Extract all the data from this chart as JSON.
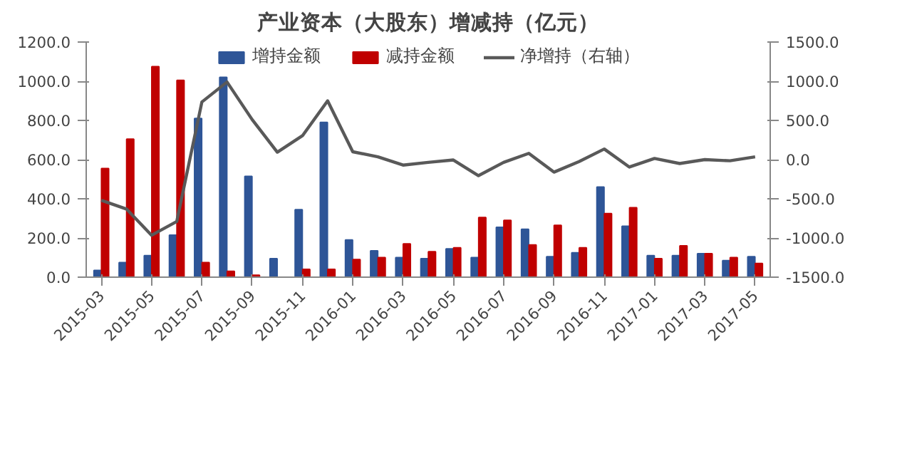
{
  "chart_data": {
    "type": "bar",
    "title": "产业资本（大股东）增减持（亿元）",
    "categories": [
      "2015-03",
      null,
      "2015-05",
      null,
      "2015-07",
      null,
      "2015-09",
      null,
      "2015-11",
      null,
      "2016-01",
      null,
      "2016-03",
      null,
      "2016-05",
      null,
      "2016-07",
      null,
      "2016-09",
      null,
      "2016-11",
      null,
      "2017-01",
      null,
      "2017-03",
      null,
      "2017-05"
    ],
    "series": [
      {
        "name": "增持金额",
        "color": "#2e5597",
        "values": [
          35,
          75,
          110,
          215,
          810,
          1020,
          515,
          95,
          345,
          790,
          190,
          135,
          100,
          95,
          145,
          100,
          255,
          245,
          105,
          125,
          460,
          260,
          110,
          110,
          120,
          85,
          105
        ]
      },
      {
        "name": "减持金额",
        "color": "#c00000",
        "values": [
          555,
          705,
          1075,
          1005,
          75,
          30,
          10,
          0,
          40,
          40,
          90,
          100,
          170,
          130,
          150,
          305,
          290,
          165,
          265,
          150,
          325,
          355,
          95,
          160,
          120,
          100,
          70
        ]
      },
      {
        "name": "净增持（右轴）",
        "type": "line",
        "axis": "y2",
        "color": "#595959",
        "values": [
          -520,
          -630,
          -965,
          -790,
          735,
          990,
          510,
          95,
          305,
          750,
          100,
          35,
          -70,
          -35,
          -5,
          -205,
          -35,
          80,
          -160,
          -25,
          135,
          -95,
          15,
          -50,
          0,
          -15,
          35
        ]
      }
    ],
    "ylim": [
      0,
      1200
    ],
    "yticks": [
      {
        "value": 0,
        "label": "0.0"
      },
      {
        "value": 200,
        "label": "200.0"
      },
      {
        "value": 400,
        "label": "400.0"
      },
      {
        "value": 600,
        "label": "600.0"
      },
      {
        "value": 800,
        "label": "800.0"
      },
      {
        "value": 1000,
        "label": "1000.0"
      },
      {
        "value": 1200,
        "label": "1200.0"
      }
    ],
    "y2lim": [
      -1500,
      1500
    ],
    "y2ticks": [
      {
        "value": -1500,
        "label": "-1500.0"
      },
      {
        "value": -1000,
        "label": "-1000.0"
      },
      {
        "value": -500,
        "label": "-500.0"
      },
      {
        "value": 0,
        "label": "0.0"
      },
      {
        "value": 500,
        "label": "500.0"
      },
      {
        "value": 1000,
        "label": "1000.0"
      },
      {
        "value": 1500,
        "label": "1500.0"
      }
    ],
    "legend": "top",
    "grid": false
  }
}
